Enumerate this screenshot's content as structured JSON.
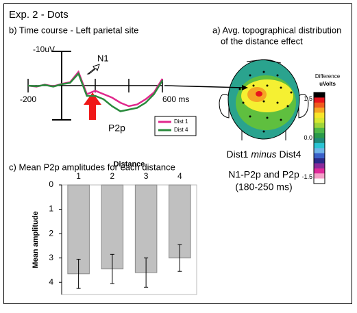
{
  "title": "Exp. 2 - Dots",
  "chart_data": [
    {
      "type": "line",
      "title": "b) Time course - Left parietal site",
      "x": [
        -200,
        -150,
        -100,
        -50,
        0,
        50,
        100,
        150,
        200,
        250,
        300,
        350,
        400,
        450,
        500,
        550,
        600
      ],
      "series": [
        {
          "name": "Dist 1",
          "color": "#e0288c",
          "values": [
            0,
            0.3,
            -0.3,
            0.2,
            -0.5,
            -1,
            -4,
            2.5,
            1.5,
            2.5,
            3.5,
            5,
            6,
            5.5,
            4,
            2,
            -2
          ]
        },
        {
          "name": "Dist 4",
          "color": "#2a8a3c",
          "values": [
            0,
            0.2,
            -0.2,
            0.3,
            -0.4,
            -0.8,
            -3.5,
            3,
            3,
            4,
            6,
            7.5,
            7,
            6.5,
            5,
            2.5,
            -1.5
          ]
        }
      ],
      "xlim": [
        -200,
        600
      ],
      "xticks": [
        -200,
        {
          "value": 600,
          "label": "600 ms"
        }
      ],
      "minor_xticks": [
        200,
        400
      ],
      "ylim": [
        10,
        -10
      ],
      "yticks": [
        {
          "value": -10,
          "label": "-10uV"
        }
      ],
      "annotations": [
        "N1",
        "P2p"
      ]
    },
    {
      "type": "bar",
      "title": "c) Mean P2p amplitudes for each distance",
      "x_label": "Distance",
      "y_label": "Mean amplitude",
      "categories": [
        "1",
        "2",
        "3",
        "4"
      ],
      "values": [
        3.65,
        3.45,
        3.6,
        3.0
      ],
      "errors": [
        0.6,
        0.6,
        0.6,
        0.55
      ],
      "color": "#c0c0c0",
      "ylim": [
        0,
        4.5
      ],
      "yticks": [
        0,
        1,
        2,
        3,
        4
      ]
    }
  ],
  "topo": {
    "title": [
      "a) Avg. topographical distribution",
      "of the distance effect"
    ],
    "caption_parts": [
      "Dist1 ",
      "minus",
      " Dist4"
    ],
    "caption_lines": [
      "N1-P2p and P2p",
      "(180-250 ms)"
    ],
    "colorbar": {
      "title": [
        "Difference",
        "uVolts"
      ],
      "lim": [
        -1.75,
        1.75
      ],
      "ticks": [
        1.5,
        {
          "value": 0,
          "label": "0.0"
        },
        -1.5
      ],
      "colors": [
        "#000000",
        "#e8141c",
        "#f05a1e",
        "#f5a623",
        "#f7e52a",
        "#d7e830",
        "#9fd43a",
        "#4fb848",
        "#2a9a4a",
        "#1f8a7a",
        "#2cc4d4",
        "#6fb4e8",
        "#3a60c8",
        "#2a2a8a",
        "#8a2a9a",
        "#e02a9a",
        "#f4a0c8",
        "#ffffff"
      ]
    }
  }
}
